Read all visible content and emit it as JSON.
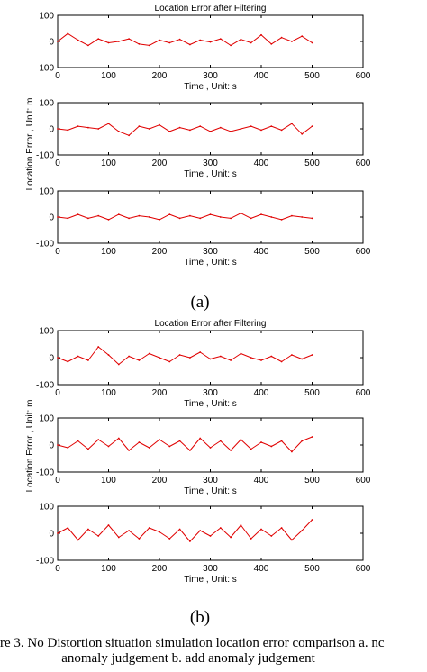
{
  "sublabel_a": "(a)",
  "sublabel_b": "(b)",
  "caption": {
    "line1": "re 3.    No Distortion situation simulation location error comparison a. nc",
    "line2": "anomaly judgement b. add anomaly judgement"
  },
  "colors": {
    "series": "#e00000",
    "axes": "#000000",
    "background": "#ffffff"
  },
  "chart_data": [
    {
      "type": "line",
      "group": "a",
      "panel": 1,
      "title": "Location Error after Filtering",
      "xlabel": "Time , Unit: s",
      "ylabel": "Location Error , Unit: m",
      "xlim": [
        0,
        600
      ],
      "ylim": [
        -100,
        100
      ],
      "x_ticks": [
        0,
        100,
        200,
        300,
        400,
        500,
        600
      ],
      "y_ticks": [
        -100,
        0,
        100
      ],
      "grid": false,
      "x": [
        0,
        20,
        40,
        60,
        80,
        100,
        120,
        140,
        160,
        180,
        200,
        220,
        240,
        260,
        280,
        300,
        320,
        340,
        360,
        380,
        400,
        420,
        440,
        460,
        480,
        500
      ],
      "series": [
        {
          "values": [
            0,
            30,
            5,
            -15,
            10,
            -5,
            0,
            10,
            -10,
            -15,
            5,
            -5,
            8,
            -12,
            5,
            -2,
            10,
            -15,
            8,
            -5,
            25,
            -10,
            15,
            0,
            20,
            -5
          ]
        }
      ]
    },
    {
      "type": "line",
      "group": "a",
      "panel": 2,
      "xlabel": "Time , Unit: s",
      "xlim": [
        0,
        600
      ],
      "ylim": [
        -100,
        100
      ],
      "x_ticks": [
        0,
        100,
        200,
        300,
        400,
        500,
        600
      ],
      "y_ticks": [
        -100,
        0,
        100
      ],
      "grid": false,
      "x": [
        0,
        20,
        40,
        60,
        80,
        100,
        120,
        140,
        160,
        180,
        200,
        220,
        240,
        260,
        280,
        300,
        320,
        340,
        360,
        380,
        400,
        420,
        440,
        460,
        480,
        500
      ],
      "series": [
        {
          "values": [
            0,
            -5,
            10,
            5,
            0,
            20,
            -10,
            -25,
            10,
            0,
            15,
            -10,
            5,
            -5,
            10,
            -10,
            5,
            -10,
            0,
            10,
            -5,
            10,
            -5,
            20,
            -20,
            10
          ]
        }
      ]
    },
    {
      "type": "line",
      "group": "a",
      "panel": 3,
      "xlabel": "Time , Unit: s",
      "xlim": [
        0,
        600
      ],
      "ylim": [
        -100,
        100
      ],
      "x_ticks": [
        0,
        100,
        200,
        300,
        400,
        500,
        600
      ],
      "y_ticks": [
        -100,
        0,
        100
      ],
      "grid": false,
      "x": [
        0,
        20,
        40,
        60,
        80,
        100,
        120,
        140,
        160,
        180,
        200,
        220,
        240,
        260,
        280,
        300,
        320,
        340,
        360,
        380,
        400,
        420,
        440,
        460,
        480,
        500
      ],
      "series": [
        {
          "values": [
            0,
            -5,
            10,
            -5,
            5,
            -10,
            10,
            -5,
            5,
            0,
            -10,
            10,
            -5,
            5,
            -5,
            10,
            0,
            -5,
            15,
            -5,
            10,
            0,
            -10,
            5,
            0,
            -5
          ]
        }
      ]
    },
    {
      "type": "line",
      "group": "b",
      "panel": 1,
      "title": "Location Error after Filtering",
      "xlabel": "Time , Unit: s",
      "ylabel": "Location Error , Unit: m",
      "xlim": [
        0,
        600
      ],
      "ylim": [
        -100,
        100
      ],
      "x_ticks": [
        0,
        100,
        200,
        300,
        400,
        500,
        600
      ],
      "y_ticks": [
        -100,
        0,
        100
      ],
      "grid": false,
      "x": [
        0,
        20,
        40,
        60,
        80,
        100,
        120,
        140,
        160,
        180,
        200,
        220,
        240,
        260,
        280,
        300,
        320,
        340,
        360,
        380,
        400,
        420,
        440,
        460,
        480,
        500
      ],
      "series": [
        {
          "values": [
            0,
            -15,
            5,
            -10,
            40,
            10,
            -25,
            5,
            -10,
            15,
            0,
            -15,
            10,
            0,
            20,
            -5,
            5,
            -10,
            15,
            0,
            -10,
            5,
            -15,
            10,
            -5,
            10
          ]
        }
      ]
    },
    {
      "type": "line",
      "group": "b",
      "panel": 2,
      "xlabel": "Time , Unit: s",
      "xlim": [
        0,
        600
      ],
      "ylim": [
        -100,
        100
      ],
      "x_ticks": [
        0,
        100,
        200,
        300,
        400,
        500,
        600
      ],
      "y_ticks": [
        -100,
        0,
        100
      ],
      "grid": false,
      "x": [
        0,
        20,
        40,
        60,
        80,
        100,
        120,
        140,
        160,
        180,
        200,
        220,
        240,
        260,
        280,
        300,
        320,
        340,
        360,
        380,
        400,
        420,
        440,
        460,
        480,
        500
      ],
      "series": [
        {
          "values": [
            0,
            -10,
            15,
            -15,
            20,
            -5,
            25,
            -20,
            10,
            -10,
            20,
            -5,
            15,
            -20,
            25,
            -10,
            15,
            -20,
            20,
            -15,
            10,
            -5,
            15,
            -25,
            15,
            30
          ]
        }
      ]
    },
    {
      "type": "line",
      "group": "b",
      "panel": 3,
      "xlabel": "Time , Unit: s",
      "xlim": [
        0,
        600
      ],
      "ylim": [
        -100,
        100
      ],
      "x_ticks": [
        0,
        100,
        200,
        300,
        400,
        500,
        600
      ],
      "y_ticks": [
        -100,
        0,
        100
      ],
      "grid": false,
      "x": [
        0,
        20,
        40,
        60,
        80,
        100,
        120,
        140,
        160,
        180,
        200,
        220,
        240,
        260,
        280,
        300,
        320,
        340,
        360,
        380,
        400,
        420,
        440,
        460,
        480,
        500
      ],
      "series": [
        {
          "values": [
            0,
            20,
            -25,
            15,
            -10,
            30,
            -15,
            10,
            -20,
            20,
            5,
            -20,
            15,
            -30,
            10,
            -10,
            20,
            -15,
            30,
            -20,
            15,
            -10,
            20,
            -25,
            10,
            50
          ]
        }
      ]
    }
  ]
}
